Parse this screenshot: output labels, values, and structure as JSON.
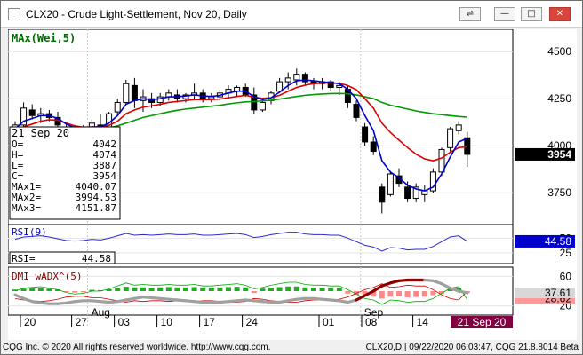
{
  "window": {
    "title": "CLX20 - Crude Light-Settlement, Nov 20, Daily",
    "controls": {
      "link": "⇌",
      "minimize": "—",
      "restore": "□",
      "close": "✕"
    }
  },
  "price_panel": {
    "study_label": "MAx(Wei,5)",
    "y_ticks": [
      "4500",
      "4250",
      "4000",
      "3750"
    ],
    "last_value": "3954"
  },
  "cursor_box": {
    "date": "21 Sep 20",
    "rows": [
      {
        "label": "O=",
        "value": "4042"
      },
      {
        "label": "H=",
        "value": "4074"
      },
      {
        "label": "L=",
        "value": "3887"
      },
      {
        "label": "C=",
        "value": "3954"
      },
      {
        "label": "MAx1=",
        "value": "4040.07"
      },
      {
        "label": "MAx2=",
        "value": "3994.53"
      },
      {
        "label": "MAx3=",
        "value": "4151.87"
      }
    ]
  },
  "rsi_panel": {
    "label": "RSI(9)",
    "readout_label": "RSI=",
    "readout_value": "44.58",
    "y_ticks": [
      "50",
      "25"
    ],
    "last_value": "44.58"
  },
  "dmi_panel": {
    "label": "DMI wADX^(5)",
    "y_ticks": [
      "60",
      "20"
    ],
    "last_values": [
      "28.62",
      "37.61"
    ]
  },
  "x_axis": {
    "day_labels": [
      "20",
      "27",
      "03",
      "10",
      "17",
      "24",
      "01",
      "08",
      "14"
    ],
    "month_labels": [
      "Aug",
      "Sep"
    ],
    "cursor_date": "21 Sep 20"
  },
  "colors": {
    "ma1": "#0000cc",
    "ma2": "#dd0000",
    "ma3": "#009900",
    "rsi": "#2a2ad0",
    "adx_bull": "#8b0000",
    "adx_neutral": "#a0a0a0",
    "cursor_bg": "#800040",
    "last_value_bg": "#000000",
    "rsi_value_bg": "#0000cc"
  },
  "chart_data": {
    "type": "candlestick",
    "candles": [
      {
        "o": 4080,
        "h": 4130,
        "l": 4060,
        "c": 4110
      },
      {
        "o": 4110,
        "h": 4230,
        "l": 4100,
        "c": 4200
      },
      {
        "o": 4190,
        "h": 4220,
        "l": 4140,
        "c": 4160
      },
      {
        "o": 4160,
        "h": 4200,
        "l": 4120,
        "c": 4170
      },
      {
        "o": 4170,
        "h": 4190,
        "l": 4130,
        "c": 4150
      },
      {
        "o": 4150,
        "h": 4180,
        "l": 4090,
        "c": 4110
      },
      {
        "o": 4100,
        "h": 4120,
        "l": 4050,
        "c": 4080
      },
      {
        "o": 4070,
        "h": 4110,
        "l": 4040,
        "c": 4090
      },
      {
        "o": 4090,
        "h": 4110,
        "l": 4060,
        "c": 4080
      },
      {
        "o": 4080,
        "h": 4140,
        "l": 4060,
        "c": 4120
      },
      {
        "o": 4110,
        "h": 4170,
        "l": 4060,
        "c": 4100
      },
      {
        "o": 4090,
        "h": 4180,
        "l": 4080,
        "c": 4170
      },
      {
        "o": 4180,
        "h": 4250,
        "l": 4160,
        "c": 4230
      },
      {
        "o": 4230,
        "h": 4350,
        "l": 4220,
        "c": 4330
      },
      {
        "o": 4320,
        "h": 4360,
        "l": 4200,
        "c": 4240
      },
      {
        "o": 4240,
        "h": 4300,
        "l": 4180,
        "c": 4260
      },
      {
        "o": 4250,
        "h": 4280,
        "l": 4200,
        "c": 4230
      },
      {
        "o": 4230,
        "h": 4280,
        "l": 4210,
        "c": 4260
      },
      {
        "o": 4260,
        "h": 4300,
        "l": 4240,
        "c": 4280
      },
      {
        "o": 4270,
        "h": 4300,
        "l": 4230,
        "c": 4250
      },
      {
        "o": 4250,
        "h": 4280,
        "l": 4230,
        "c": 4270
      },
      {
        "o": 4270,
        "h": 4330,
        "l": 4250,
        "c": 4280
      },
      {
        "o": 4280,
        "h": 4300,
        "l": 4230,
        "c": 4250
      },
      {
        "o": 4250,
        "h": 4280,
        "l": 4230,
        "c": 4260
      },
      {
        "o": 4260,
        "h": 4300,
        "l": 4240,
        "c": 4280
      },
      {
        "o": 4280,
        "h": 4320,
        "l": 4250,
        "c": 4300
      },
      {
        "o": 4290,
        "h": 4320,
        "l": 4260,
        "c": 4310
      },
      {
        "o": 4310,
        "h": 4330,
        "l": 4260,
        "c": 4270
      },
      {
        "o": 4270,
        "h": 4310,
        "l": 4170,
        "c": 4190
      },
      {
        "o": 4190,
        "h": 4240,
        "l": 4180,
        "c": 4230
      },
      {
        "o": 4240,
        "h": 4290,
        "l": 4220,
        "c": 4280
      },
      {
        "o": 4290,
        "h": 4360,
        "l": 4280,
        "c": 4340
      },
      {
        "o": 4340,
        "h": 4390,
        "l": 4300,
        "c": 4360
      },
      {
        "o": 4350,
        "h": 4410,
        "l": 4320,
        "c": 4380
      },
      {
        "o": 4380,
        "h": 4390,
        "l": 4320,
        "c": 4340
      },
      {
        "o": 4340,
        "h": 4360,
        "l": 4300,
        "c": 4330
      },
      {
        "o": 4330,
        "h": 4360,
        "l": 4300,
        "c": 4340
      },
      {
        "o": 4340,
        "h": 4350,
        "l": 4290,
        "c": 4310
      },
      {
        "o": 4310,
        "h": 4340,
        "l": 4270,
        "c": 4320
      },
      {
        "o": 4300,
        "h": 4320,
        "l": 4200,
        "c": 4230
      },
      {
        "o": 4220,
        "h": 4240,
        "l": 4130,
        "c": 4150
      },
      {
        "o": 4100,
        "h": 4120,
        "l": 4000,
        "c": 4020
      },
      {
        "o": 4020,
        "h": 4050,
        "l": 3950,
        "c": 3970
      },
      {
        "o": 3780,
        "h": 3800,
        "l": 3640,
        "c": 3700
      },
      {
        "o": 3740,
        "h": 3860,
        "l": 3730,
        "c": 3850
      },
      {
        "o": 3840,
        "h": 3880,
        "l": 3780,
        "c": 3800
      },
      {
        "o": 3780,
        "h": 3810,
        "l": 3700,
        "c": 3720
      },
      {
        "o": 3720,
        "h": 3800,
        "l": 3700,
        "c": 3780
      },
      {
        "o": 3740,
        "h": 3790,
        "l": 3700,
        "c": 3760
      },
      {
        "o": 3760,
        "h": 3880,
        "l": 3750,
        "c": 3860
      },
      {
        "o": 3860,
        "h": 3990,
        "l": 3840,
        "c": 3980
      },
      {
        "o": 3990,
        "h": 4100,
        "l": 3970,
        "c": 4090
      },
      {
        "o": 4080,
        "h": 4130,
        "l": 4060,
        "c": 4110
      },
      {
        "o": 4042,
        "h": 4074,
        "l": 3887,
        "c": 3954
      }
    ],
    "ma1": [
      4090,
      4130,
      4145,
      4160,
      4160,
      4145,
      4115,
      4095,
      4090,
      4100,
      4100,
      4120,
      4160,
      4220,
      4240,
      4250,
      4245,
      4250,
      4260,
      4260,
      4265,
      4270,
      4265,
      4262,
      4268,
      4280,
      4290,
      4290,
      4260,
      4245,
      4255,
      4285,
      4320,
      4345,
      4350,
      4345,
      4340,
      4335,
      4330,
      4300,
      4250,
      4160,
      4080,
      3920,
      3860,
      3830,
      3790,
      3770,
      3760,
      3780,
      3850,
      3940,
      4020,
      4040.07
    ],
    "ma2": [
      4070,
      4100,
      4115,
      4130,
      4138,
      4135,
      4120,
      4105,
      4098,
      4100,
      4100,
      4108,
      4130,
      4170,
      4190,
      4205,
      4212,
      4220,
      4230,
      4235,
      4240,
      4245,
      4245,
      4245,
      4248,
      4255,
      4262,
      4268,
      4258,
      4252,
      4255,
      4268,
      4290,
      4310,
      4322,
      4330,
      4333,
      4333,
      4332,
      4320,
      4298,
      4250,
      4200,
      4120,
      4070,
      4030,
      3990,
      3955,
      3930,
      3920,
      3935,
      3965,
      3990,
      3994.53
    ],
    "ma3": [
      4060,
      4065,
      4070,
      4075,
      4080,
      4082,
      4083,
      4084,
      4085,
      4087,
      4090,
      4095,
      4105,
      4120,
      4135,
      4150,
      4160,
      4170,
      4180,
      4188,
      4195,
      4200,
      4205,
      4210,
      4215,
      4222,
      4228,
      4233,
      4235,
      4238,
      4242,
      4248,
      4255,
      4262,
      4268,
      4272,
      4275,
      4277,
      4278,
      4276,
      4270,
      4260,
      4250,
      4230,
      4215,
      4205,
      4195,
      4185,
      4177,
      4170,
      4165,
      4160,
      4155,
      4151.87
    ],
    "rsi": [
      48,
      52,
      53,
      54,
      52,
      49,
      46,
      45,
      46,
      48,
      47,
      50,
      54,
      58,
      55,
      56,
      55,
      56,
      57,
      56,
      56,
      57,
      55,
      55,
      56,
      57,
      58,
      56,
      51,
      53,
      56,
      58,
      60,
      60,
      57,
      56,
      56,
      55,
      55,
      50,
      44,
      38,
      35,
      28,
      34,
      33,
      30,
      31,
      31,
      36,
      44,
      52,
      54,
      44.58
    ],
    "adx": [
      35,
      30,
      26,
      24,
      23,
      23,
      24,
      26,
      27,
      27,
      26,
      25,
      26,
      28,
      30,
      32,
      31,
      30,
      29,
      28,
      27,
      26,
      25,
      25,
      25,
      26,
      27,
      28,
      27,
      26,
      25,
      25,
      27,
      29,
      30,
      30,
      29,
      28,
      27,
      25,
      28,
      34,
      40,
      47,
      51,
      54,
      55,
      55,
      55,
      54,
      50,
      44,
      40,
      37.61
    ],
    "plus_di": [
      40,
      44,
      45,
      46,
      44,
      42,
      38,
      36,
      37,
      40,
      40,
      43,
      47,
      51,
      48,
      49,
      48,
      48,
      49,
      48,
      48,
      49,
      47,
      47,
      48,
      49,
      50,
      48,
      43,
      45,
      48,
      50,
      52,
      52,
      49,
      48,
      48,
      47,
      47,
      42,
      36,
      30,
      28,
      22,
      28,
      27,
      25,
      26,
      26,
      30,
      37,
      44,
      46,
      28.62
    ],
    "minus_di": [
      30,
      28,
      27,
      26,
      27,
      29,
      32,
      33,
      33,
      31,
      31,
      29,
      27,
      25,
      27,
      26,
      27,
      27,
      26,
      27,
      27,
      26,
      27,
      27,
      26,
      25,
      25,
      26,
      30,
      29,
      27,
      26,
      25,
      25,
      27,
      28,
      28,
      28,
      29,
      32,
      37,
      42,
      45,
      50,
      45,
      46,
      48,
      47,
      47,
      42,
      35,
      30,
      28,
      40
    ],
    "dmi_bars": [
      5,
      8,
      9,
      10,
      8,
      5,
      -3,
      -5,
      -4,
      4,
      3,
      6,
      10,
      14,
      12,
      12,
      11,
      12,
      13,
      12,
      12,
      13,
      11,
      11,
      12,
      13,
      14,
      12,
      -6,
      8,
      11,
      13,
      15,
      15,
      12,
      11,
      11,
      10,
      10,
      -8,
      -12,
      -16,
      -18,
      -24,
      -18,
      -17,
      -20,
      -19,
      -18,
      -13,
      -8,
      8,
      10,
      -6
    ],
    "price_ylim": [
      3600,
      4600
    ],
    "rsi_ylim": [
      10,
      70
    ],
    "dmi_ylim": [
      10,
      70
    ],
    "month_boundaries": [
      {
        "label": "Aug",
        "index": 9
      },
      {
        "label": "Sep",
        "index": 41
      }
    ]
  },
  "status_bar": {
    "copyright": "CQG Inc. © 2020 All rights reserved worldwide. http://www.cqg.com.",
    "info": "CLX20,D | 09/22/2020 06:03:47, CQG 21.8.8014 Beta"
  }
}
